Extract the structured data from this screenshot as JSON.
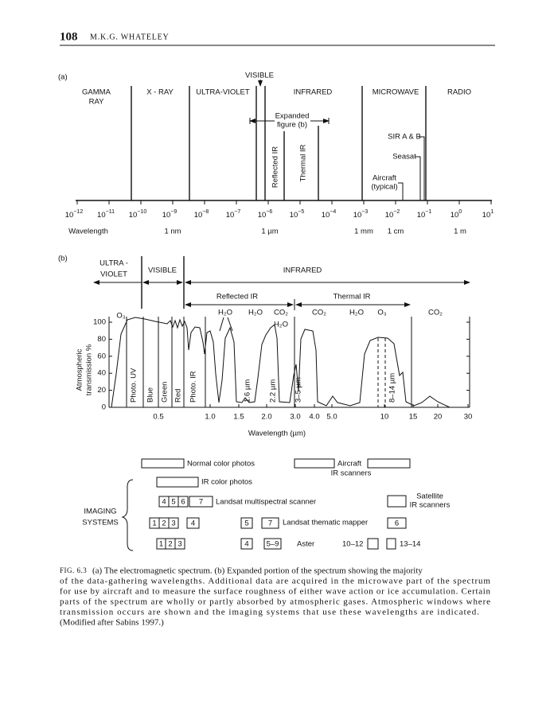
{
  "header": {
    "page_number": "108",
    "author": "M.K.G. WHATELEY"
  },
  "figure_a": {
    "label": "(a)",
    "visible": "VISIBLE",
    "regions": [
      [
        "GAMMA",
        "RAY"
      ],
      [
        "X - RAY"
      ],
      [
        "ULTRA-VIOLET"
      ],
      [
        "INFRARED"
      ],
      [
        "MICROWAVE"
      ],
      [
        "RADIO"
      ]
    ],
    "expanded": [
      "Expanded",
      "figure (b)"
    ],
    "reflected_ir": "Reflected IR",
    "thermal_ir": "Thermal IR",
    "sir": "SIR A & B",
    "seasat": "Seasat",
    "aircraft": [
      "Aircraft",
      "(typical)"
    ],
    "ticks": [
      {
        "base": "10",
        "exp": "−12"
      },
      {
        "base": "10",
        "exp": "−11"
      },
      {
        "base": "10",
        "exp": "−10"
      },
      {
        "base": "10",
        "exp": "−9"
      },
      {
        "base": "10",
        "exp": "−8"
      },
      {
        "base": "10",
        "exp": "−7"
      },
      {
        "base": "10",
        "exp": "−6"
      },
      {
        "base": "10",
        "exp": "−5"
      },
      {
        "base": "10",
        "exp": "−4"
      },
      {
        "base": "10",
        "exp": "−3"
      },
      {
        "base": "10",
        "exp": "−2"
      },
      {
        "base": "10",
        "exp": "−1"
      },
      {
        "base": "10",
        "exp": "0"
      },
      {
        "base": "10",
        "exp": "1"
      }
    ],
    "wavelength_labels": [
      "Wavelength",
      "1 nm",
      "1 µm",
      "1 mm",
      "1 cm",
      "1 m"
    ]
  },
  "figure_b": {
    "label": "(b)",
    "ultra_violet": [
      "ULTRA -",
      "VIOLET"
    ],
    "visible": "VISIBLE",
    "infrared": "INFRARED",
    "reflected_ir": "Reflected IR",
    "thermal_ir": "Thermal IR",
    "gases": [
      "O₃",
      "H₂O",
      "H₂O",
      "CO₂",
      "H₂O",
      "CO₂",
      "H₂O",
      "O₃",
      "CO₂"
    ],
    "ylabel": [
      "Atmospheric",
      "transmission %"
    ],
    "yticks": [
      "100",
      "80",
      "60",
      "40",
      "20",
      "0"
    ],
    "xticks": [
      "0.5",
      "1.0",
      "1.5",
      "2.0",
      "3.0",
      "4.0",
      "5.0",
      "10",
      "15",
      "20",
      "30"
    ],
    "xlabel": "Wavelength (µm)",
    "bands": [
      "Photo. UV",
      "Blue",
      "Green",
      "Red",
      "Photo. IR",
      "1.6 µm",
      "2.2 µm",
      "3–5 µm",
      "8–14 µm"
    ]
  },
  "imaging": {
    "title": [
      "IMAGING",
      "SYSTEMS"
    ],
    "normal": "Normal color photos",
    "aircraft": [
      "Aircraft",
      "IR scanners"
    ],
    "ir_color": "IR color photos",
    "mss_bands": [
      "4",
      "5",
      "6",
      "7"
    ],
    "mss": "Landsat multispectral scanner",
    "satellite": [
      "Satellite",
      "IR scanners"
    ],
    "tm_bands": [
      "1",
      "2",
      "3",
      "4",
      "5",
      "7",
      "6"
    ],
    "tm": "Landsat thematic mapper",
    "aster_bands": [
      "1",
      "2",
      "3",
      "4",
      "5–9",
      "10–12",
      "13–14"
    ],
    "aster": "Aster"
  },
  "caption": {
    "label": "FIG. 6.3",
    "lines": [
      "(a) The electromagnetic spectrum. (b) Expanded portion of the spectrum showing the majority",
      "of the data-gathering wavelengths. Additional data are acquired in the microwave part of the spectrum",
      "for use by aircraft and to measure the surface roughness of either wave action or ice accumulation. Certain",
      "parts of the spectrum are wholly or partly absorbed by atmospheric gases. Atmospheric windows where",
      "transmission occurs are shown and the imaging systems that use these wavelengths are indicated.",
      "(Modified after Sabins 1997.)"
    ]
  }
}
